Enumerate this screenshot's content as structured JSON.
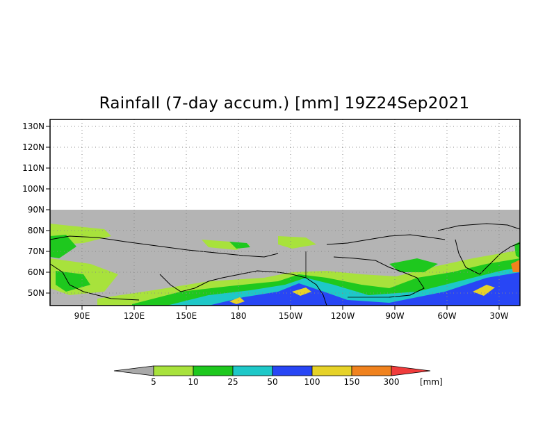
{
  "title": "Rainfall (7-day accum.) [mm] 19Z24Sep2021",
  "lat_labels": [
    "130N",
    "120N",
    "110N",
    "100N",
    "90N",
    "80N",
    "70N",
    "60N",
    "50N"
  ],
  "lon_labels": [
    "90E",
    "120E",
    "150E",
    "180",
    "150W",
    "120W",
    "90W",
    "60W",
    "30W"
  ],
  "colorbar": {
    "levels": [
      "5",
      "10",
      "25",
      "50",
      "100",
      "150",
      "300"
    ],
    "unit": "[mm]",
    "colors": [
      "#a9a9a9",
      "#a8e23c",
      "#1ec81e",
      "#1ec8c8",
      "#2846f5",
      "#e6d228",
      "#f0821e",
      "#f03c3c"
    ]
  },
  "map": {
    "no_data_color": "#b4b4b4",
    "frame_color": "#000000",
    "grid_style": "dotted"
  }
}
